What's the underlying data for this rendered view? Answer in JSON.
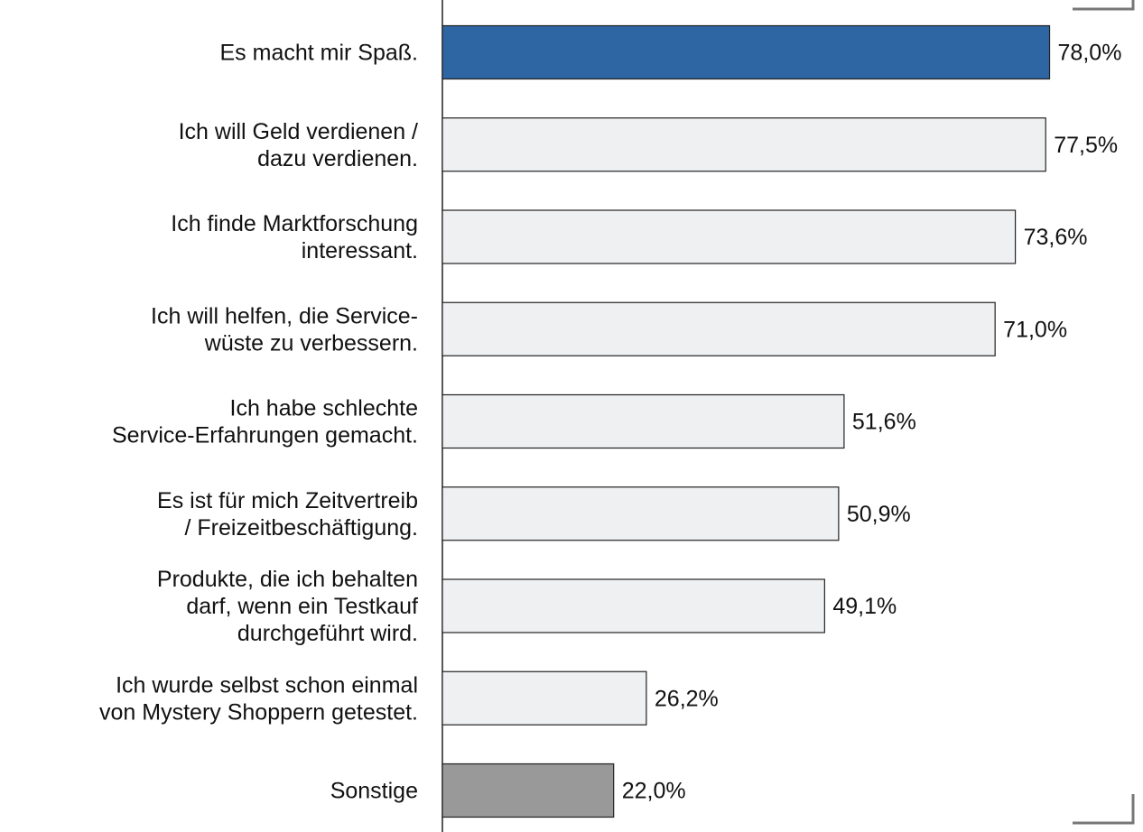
{
  "chart_data": {
    "type": "barh",
    "categories": [
      [
        "Es macht mir Spaß."
      ],
      [
        "Ich will Geld verdienen /",
        "dazu verdienen."
      ],
      [
        "Ich finde Marktforschung",
        "interessant."
      ],
      [
        "Ich will helfen, die Service-",
        "wüste zu verbessern."
      ],
      [
        "Ich habe schlechte",
        "Service-Erfahrungen gemacht."
      ],
      [
        "Es ist für mich Zeitvertreib",
        "/ Freizeitbeschäftigung."
      ],
      [
        "Produkte, die ich behalten",
        "darf, wenn ein Testkauf",
        "durchgeführt wird."
      ],
      [
        "Ich wurde selbst schon einmal",
        "von Mystery Shoppern getestet."
      ],
      [
        "Sonstige"
      ]
    ],
    "values": [
      78.0,
      77.5,
      73.6,
      71.0,
      51.6,
      50.9,
      49.1,
      26.2,
      22.0
    ],
    "value_labels": [
      "78,0%",
      "77,5%",
      "73,6%",
      "71,0%",
      "51,6%",
      "50,9%",
      "49,1%",
      "26,2%",
      "22,0%"
    ],
    "colors": [
      "#2e65a3",
      "#eef0f2",
      "#eef0f2",
      "#eef0f2",
      "#eef0f2",
      "#eef0f2",
      "#eef0f2",
      "#eef0f2",
      "#999999"
    ],
    "xlim": [
      0,
      90
    ]
  }
}
